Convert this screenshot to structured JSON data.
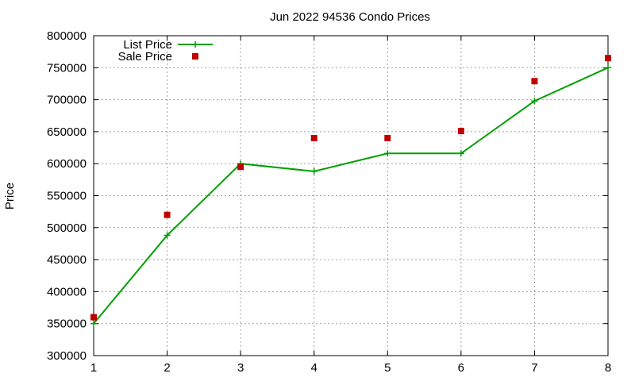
{
  "chart_data": {
    "type": "line",
    "title": "Jun 2022 94536 Condo Prices",
    "xlabel": "",
    "ylabel": "Price",
    "x": [
      1,
      2,
      3,
      4,
      5,
      6,
      7,
      8
    ],
    "xlim": [
      1,
      8
    ],
    "ylim": [
      300000,
      800000
    ],
    "xticks": [
      1,
      2,
      3,
      4,
      5,
      6,
      7,
      8
    ],
    "yticks": [
      300000,
      350000,
      400000,
      450000,
      500000,
      550000,
      600000,
      650000,
      700000,
      750000,
      800000
    ],
    "grid": true,
    "legend_position": "top-left",
    "series": [
      {
        "name": "List Price",
        "style": "line+cross",
        "color": "#00a000",
        "values": [
          350000,
          488000,
          600000,
          588000,
          616000,
          616000,
          698000,
          750000
        ]
      },
      {
        "name": "Sale Price",
        "style": "square",
        "color": "#c00000",
        "values": [
          360000,
          520000,
          595000,
          640000,
          640000,
          651000,
          729000,
          765000
        ]
      }
    ]
  }
}
